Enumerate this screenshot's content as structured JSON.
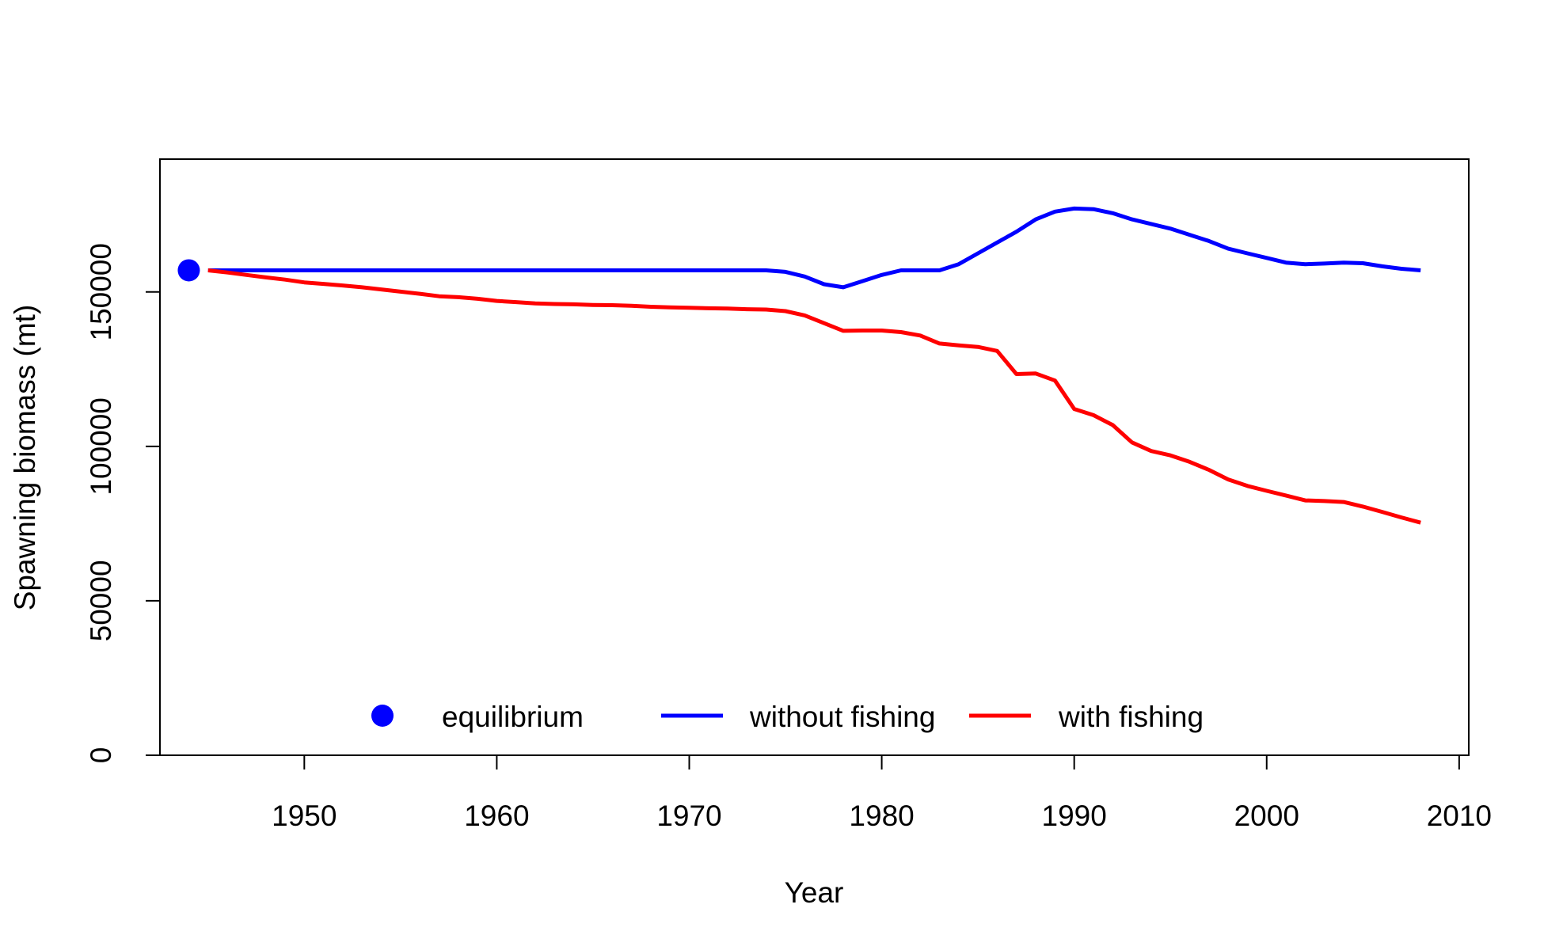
{
  "chart_data": {
    "type": "line",
    "title": "",
    "xlabel": "Year",
    "ylabel": "Spawning biomass (mt)",
    "xlim": [
      1942.5,
      2010.5
    ],
    "ylim": [
      0,
      193000
    ],
    "x_ticks": [
      1950,
      1960,
      1970,
      1980,
      1990,
      2000,
      2010
    ],
    "y_ticks": [
      0,
      50000,
      100000,
      150000
    ],
    "grid": false,
    "legend": {
      "placement": "bottom-center",
      "entries": [
        {
          "label": "equilibrium",
          "symbol": "point",
          "color": "#0000FF"
        },
        {
          "label": "without fishing",
          "symbol": "line",
          "color": "#0000FF"
        },
        {
          "label": "with fishing",
          "symbol": "line",
          "color": "#FF0000"
        }
      ]
    },
    "points": [
      {
        "name": "equilibrium",
        "x": 1944,
        "y": 157000,
        "color": "#0000FF"
      }
    ],
    "series": [
      {
        "name": "without fishing",
        "color": "#0000FF",
        "x": [
          1945,
          1950,
          1955,
          1960,
          1965,
          1970,
          1974,
          1975,
          1976,
          1977,
          1978,
          1979,
          1980,
          1981,
          1982,
          1983,
          1984,
          1985,
          1986,
          1987,
          1988,
          1989,
          1990,
          1991,
          1992,
          1993,
          1994,
          1995,
          1996,
          1997,
          1998,
          1999,
          2000,
          2001,
          2002,
          2003,
          2004,
          2005,
          2006,
          2007,
          2008
        ],
        "values": [
          157000,
          157000,
          157000,
          157000,
          157000,
          157000,
          157000,
          156500,
          155000,
          152500,
          151500,
          153500,
          155500,
          157000,
          157000,
          157000,
          159000,
          162500,
          166000,
          169500,
          173500,
          176000,
          177000,
          176800,
          175500,
          173500,
          172000,
          170500,
          168500,
          166500,
          164000,
          162500,
          161000,
          159500,
          159000,
          159200,
          159500,
          159300,
          158300,
          157500,
          157000
        ]
      },
      {
        "name": "with fishing",
        "color": "#FF0000",
        "x": [
          1945,
          1946,
          1947,
          1948,
          1949,
          1950,
          1951,
          1952,
          1953,
          1954,
          1955,
          1956,
          1957,
          1958,
          1959,
          1960,
          1961,
          1962,
          1963,
          1964,
          1965,
          1966,
          1967,
          1968,
          1969,
          1970,
          1971,
          1972,
          1973,
          1974,
          1975,
          1976,
          1977,
          1978,
          1979,
          1980,
          1981,
          1982,
          1983,
          1984,
          1985,
          1986,
          1987,
          1988,
          1989,
          1990,
          1991,
          1992,
          1993,
          1994,
          1995,
          1996,
          1997,
          1998,
          1999,
          2000,
          2001,
          2002,
          2003,
          2004,
          2005,
          2006,
          2007,
          2008
        ],
        "values": [
          157000,
          156300,
          155500,
          154700,
          154000,
          153100,
          152600,
          152100,
          151500,
          150800,
          150100,
          149400,
          148600,
          148300,
          147800,
          147100,
          146700,
          146300,
          146100,
          146000,
          145800,
          145700,
          145500,
          145200,
          145000,
          144900,
          144700,
          144600,
          144400,
          144300,
          143800,
          142400,
          139900,
          137400,
          137500,
          137500,
          137000,
          135900,
          133300,
          132700,
          132200,
          130900,
          123400,
          123600,
          121300,
          112100,
          110100,
          106900,
          101300,
          98500,
          97100,
          95000,
          92400,
          89300,
          87200,
          85600,
          84100,
          82500,
          82300,
          82000,
          80500,
          78800,
          77000,
          75300
        ]
      }
    ]
  }
}
